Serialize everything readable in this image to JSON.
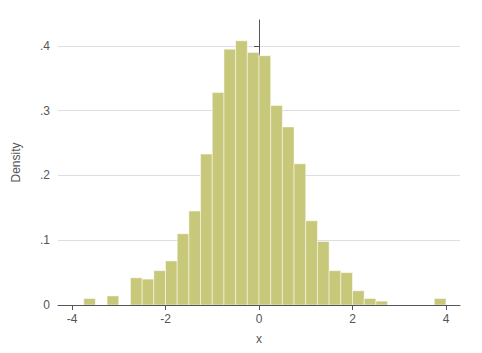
{
  "chart_data": {
    "type": "histogram",
    "xlabel": "x",
    "ylabel": "Density",
    "bins": [
      -3.75,
      -3.5,
      -3.25,
      -3.0,
      -2.75,
      -2.5,
      -2.25,
      -2.0,
      -1.75,
      -1.5,
      -1.25,
      -1.0,
      -0.75,
      -0.5,
      -0.25,
      0.0,
      0.25,
      0.5,
      0.75,
      1.0,
      1.25,
      1.5,
      1.75,
      2.0,
      2.25,
      2.5,
      2.75,
      3.0,
      3.25,
      3.5,
      3.75,
      4.0
    ],
    "values": [
      0.01,
      0.0,
      0.014,
      0.0,
      0.042,
      0.04,
      0.053,
      0.068,
      0.11,
      0.145,
      0.233,
      0.328,
      0.395,
      0.408,
      0.39,
      0.385,
      0.308,
      0.275,
      0.218,
      0.13,
      0.098,
      0.053,
      0.05,
      0.022,
      0.01,
      0.006,
      0.0,
      0.0,
      0.0,
      0.0,
      0.01
    ],
    "color": "#c8c87a",
    "xlim": [
      -4.3,
      4.3
    ],
    "xticks": [
      -4,
      -2,
      0,
      2,
      4
    ],
    "ylim": [
      0,
      0.44
    ],
    "yticks": [
      0,
      {
        "value": 0.1,
        "label": ".1"
      },
      {
        "value": 0.2,
        "label": ".2"
      },
      {
        "value": 0.3,
        "label": ".3"
      },
      {
        "value": 0.4,
        "label": ".4"
      }
    ],
    "grid": true
  }
}
